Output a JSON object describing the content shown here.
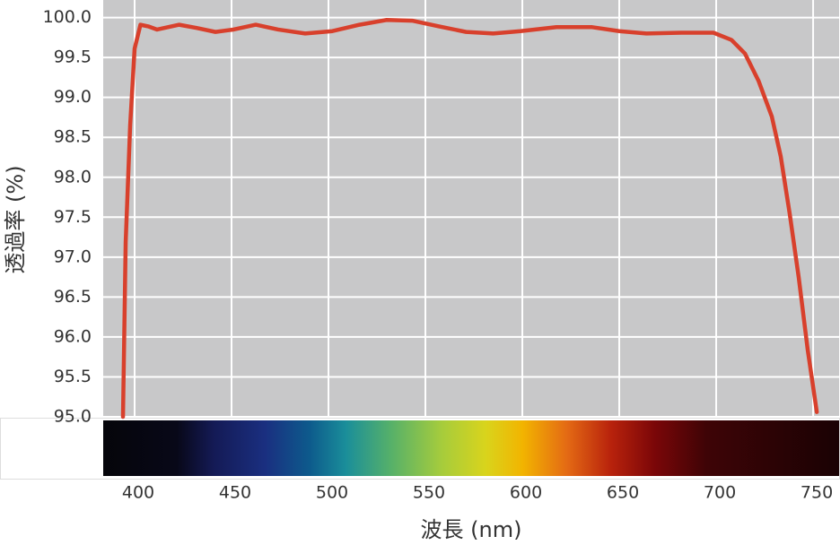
{
  "chart_data": {
    "type": "line",
    "x_label": "波長 (nm)",
    "y_label": "透過率 (%)",
    "xlim": [
      383.8,
      763.4
    ],
    "ylim": [
      95,
      100.22
    ],
    "xticks": [
      400,
      450,
      500,
      550,
      600,
      650,
      700,
      750
    ],
    "yticks": [
      {
        "value": 95,
        "label": "95.0"
      },
      95.5,
      {
        "value": 96,
        "label": "96.0"
      },
      96.5,
      {
        "value": 97,
        "label": "97.0"
      },
      97.5,
      {
        "value": 98,
        "label": "98.0"
      },
      98.5,
      {
        "value": 99,
        "label": "99.0"
      },
      99.5,
      {
        "value": 100,
        "label": "100.0"
      }
    ],
    "grid": true,
    "series": [
      {
        "color": "#d8402c",
        "x": [
          394.0,
          395.4,
          397.7,
          400,
          403,
          407,
          411.6,
          423,
          432,
          441.7,
          451,
          462.5,
          474,
          488,
          502,
          516,
          530,
          543.5,
          557,
          571,
          585,
          599,
          617.6,
          636,
          650,
          664,
          682,
          698.6,
          707.9,
          714.8,
          721.8,
          728.7,
          733.3,
          738,
          742.6,
          747.2,
          751.9
        ],
        "values": [
          95.0,
          97.19,
          98.65,
          99.61,
          99.91,
          99.89,
          99.85,
          99.91,
          99.87,
          99.82,
          99.85,
          99.91,
          99.85,
          99.8,
          99.83,
          99.91,
          99.97,
          99.96,
          99.89,
          99.82,
          99.8,
          99.83,
          99.88,
          99.88,
          99.83,
          99.8,
          99.81,
          99.81,
          99.72,
          99.55,
          99.21,
          98.76,
          98.26,
          97.53,
          96.74,
          95.84,
          95.06
        ]
      }
    ]
  }
}
